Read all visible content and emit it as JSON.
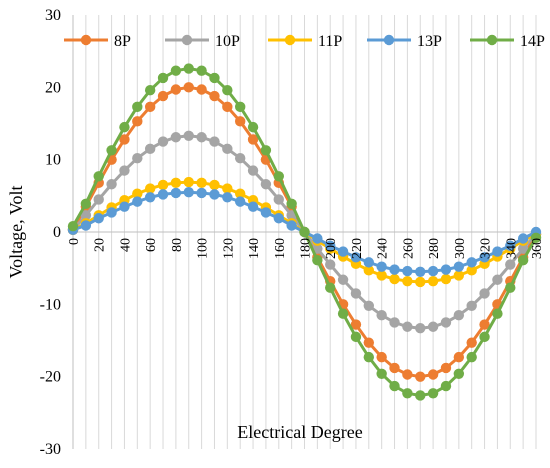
{
  "chart_data": {
    "type": "line",
    "title": "",
    "xlabel": "Electrical Degree",
    "ylabel": "Voltage, Volt",
    "x": [
      0,
      10,
      20,
      30,
      40,
      50,
      60,
      70,
      80,
      90,
      100,
      110,
      120,
      130,
      140,
      150,
      160,
      170,
      180,
      190,
      200,
      210,
      220,
      230,
      240,
      250,
      260,
      270,
      280,
      290,
      300,
      310,
      320,
      330,
      340,
      350,
      360
    ],
    "x_ticks": [
      0,
      20,
      40,
      60,
      80,
      100,
      120,
      140,
      160,
      180,
      200,
      220,
      240,
      260,
      280,
      300,
      320,
      340,
      360
    ],
    "x_tick_labels": [
      "0",
      "20",
      "40",
      "60",
      "80",
      "100",
      "120",
      "140",
      "160",
      "180",
      "200",
      "220",
      "240",
      "260",
      "280",
      "300",
      "320",
      "340",
      "360"
    ],
    "xlim": [
      0,
      360
    ],
    "ylim": [
      -30,
      30
    ],
    "y_ticks": [
      -30,
      -20,
      -10,
      0,
      10,
      20,
      30
    ],
    "y_tick_labels": [
      "-30",
      "-20",
      "-10",
      "0",
      "10",
      "20",
      "30"
    ],
    "grid": "vertical",
    "legend": "top",
    "series": [
      {
        "name": "8P",
        "color": "#ED7D31",
        "values": [
          0.3,
          3.5,
          6.8,
          10.0,
          12.8,
          15.3,
          17.3,
          18.8,
          19.7,
          20.0,
          19.7,
          18.8,
          17.3,
          15.3,
          12.8,
          10.0,
          6.8,
          3.5,
          0,
          -3.5,
          -6.8,
          -10.0,
          -12.8,
          -15.3,
          -17.3,
          -18.8,
          -19.7,
          -20.0,
          -19.7,
          -18.8,
          -17.3,
          -15.3,
          -12.8,
          -10.0,
          -6.8,
          -3.5,
          -0.3
        ]
      },
      {
        "name": "10P",
        "color": "#A5A5A5",
        "values": [
          0.3,
          2.3,
          4.5,
          6.6,
          8.5,
          10.2,
          11.5,
          12.5,
          13.1,
          13.3,
          13.1,
          12.5,
          11.5,
          10.2,
          8.5,
          6.6,
          4.5,
          2.3,
          0,
          -2.3,
          -4.5,
          -6.6,
          -8.5,
          -10.2,
          -11.5,
          -12.5,
          -13.1,
          -13.3,
          -13.1,
          -12.5,
          -11.5,
          -10.2,
          -8.5,
          -6.6,
          -4.5,
          -2.3,
          -0.3
        ]
      },
      {
        "name": "11P",
        "color": "#FFC000",
        "values": [
          0.3,
          1.2,
          2.3,
          3.4,
          4.4,
          5.3,
          6.0,
          6.5,
          6.8,
          6.9,
          6.8,
          6.5,
          6.0,
          5.3,
          4.4,
          3.4,
          2.3,
          1.2,
          0,
          -1.2,
          -2.3,
          -3.4,
          -4.4,
          -5.3,
          -6.0,
          -6.5,
          -6.8,
          -6.9,
          -6.8,
          -6.5,
          -6.0,
          -5.3,
          -4.4,
          -3.4,
          -2.3,
          -1.2,
          -0.3
        ]
      },
      {
        "name": "13P",
        "color": "#5B9BD5",
        "values": [
          0.3,
          0.9,
          1.9,
          2.7,
          3.5,
          4.2,
          4.8,
          5.2,
          5.4,
          5.5,
          5.4,
          5.2,
          4.8,
          4.2,
          3.5,
          2.7,
          1.9,
          0.9,
          0,
          -0.9,
          -1.9,
          -2.7,
          -3.5,
          -4.2,
          -4.8,
          -5.2,
          -5.4,
          -5.5,
          -5.4,
          -5.2,
          -4.8,
          -4.2,
          -3.5,
          -2.7,
          -1.9,
          -0.9,
          0.0
        ]
      },
      {
        "name": "14P",
        "color": "#70AD47",
        "values": [
          0.8,
          3.9,
          7.7,
          11.3,
          14.5,
          17.3,
          19.6,
          21.3,
          22.3,
          22.6,
          22.3,
          21.3,
          19.6,
          17.3,
          14.5,
          11.3,
          7.7,
          3.9,
          0,
          -3.9,
          -7.7,
          -11.3,
          -14.5,
          -17.3,
          -19.6,
          -21.3,
          -22.3,
          -22.6,
          -22.3,
          -21.3,
          -19.6,
          -17.3,
          -14.5,
          -11.3,
          -7.7,
          -3.9,
          -0.8
        ]
      }
    ]
  }
}
